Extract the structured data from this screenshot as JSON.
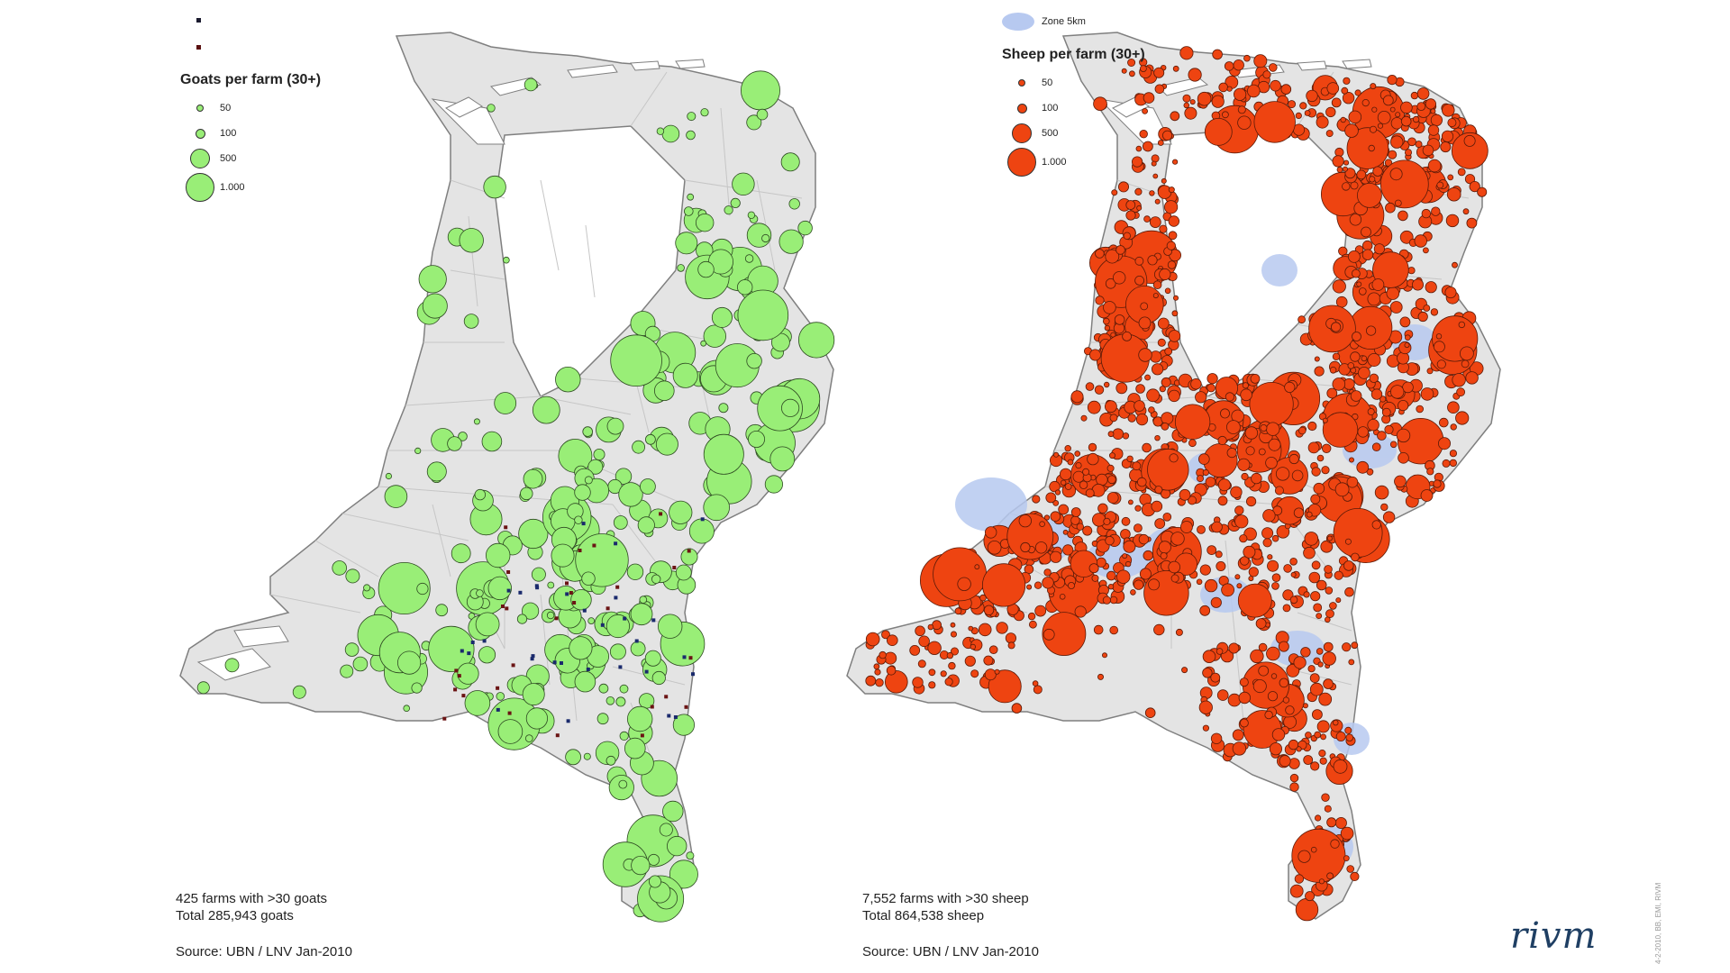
{
  "left_map": {
    "legend_title": "Goats per farm (30+)",
    "legend_items": [
      {
        "label": "50",
        "value": 50
      },
      {
        "label": "100",
        "value": 100
      },
      {
        "label": "500",
        "value": 500
      },
      {
        "label": "1.000",
        "value": 1000
      }
    ],
    "symbol_color": "#99ee77",
    "stats_line1": "425 farms with >30 goats",
    "stats_line2": "Total 285,943 goats",
    "source": "Source: UBN / LNV Jan-2010"
  },
  "right_map": {
    "zone_label": "Zone 5km",
    "zone_color": "#b7c9f0",
    "legend_title": "Sheep per farm (30+)",
    "legend_items": [
      {
        "label": "50",
        "value": 50
      },
      {
        "label": "100",
        "value": 100
      },
      {
        "label": "500",
        "value": 500
      },
      {
        "label": "1.000",
        "value": 1000
      }
    ],
    "symbol_color": "#ee4411",
    "stats_line1": "7,552 farms with >30 sheep",
    "stats_line2": "Total 864,538 sheep",
    "source": "Source: UBN / LNV Jan-2010"
  },
  "logo": "rivm",
  "credit": "4-2-2010, BB, EMI, RIVM"
}
